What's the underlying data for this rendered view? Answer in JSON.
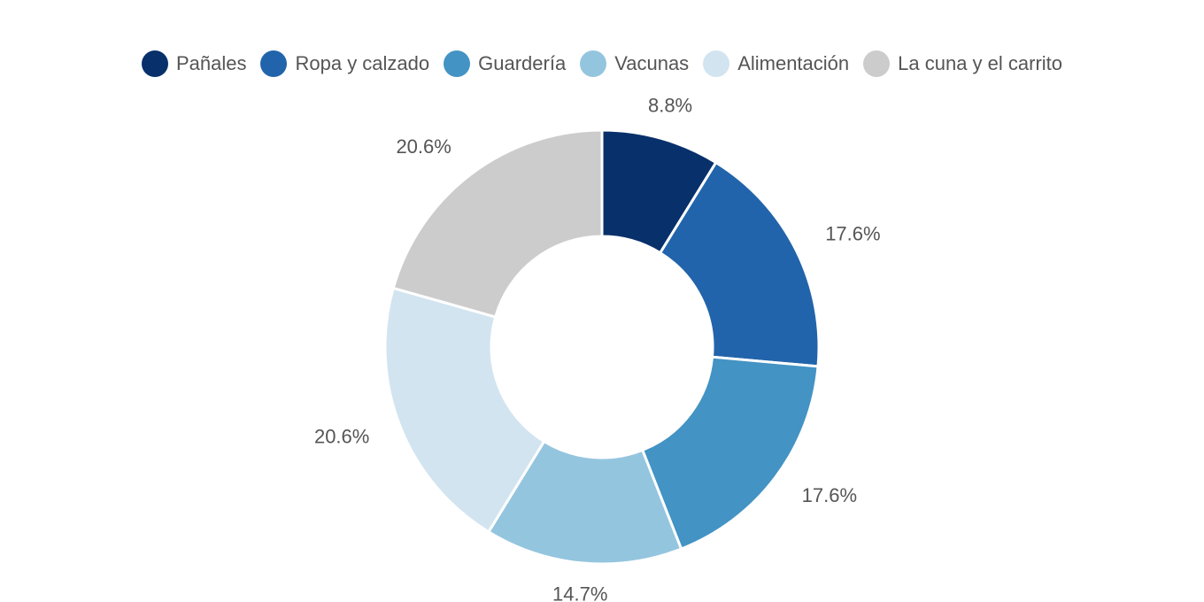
{
  "chart_data": {
    "type": "pie",
    "variant": "donut",
    "title": "",
    "legend_position": "top",
    "categories": [
      "Pañales",
      "Ropa y calzado",
      "Guardería",
      "Vacunas",
      "Alimentación",
      "La cuna y el carrito"
    ],
    "values": [
      8.8,
      17.6,
      17.6,
      14.7,
      20.6,
      20.6
    ],
    "labels": [
      "8.8%",
      "17.6%",
      "17.6%",
      "14.7%",
      "20.6%",
      "20.6%"
    ],
    "colors": [
      "#08306b",
      "#2264ab",
      "#4393c4",
      "#94c5df",
      "#d2e4f0",
      "#cccccc"
    ]
  }
}
